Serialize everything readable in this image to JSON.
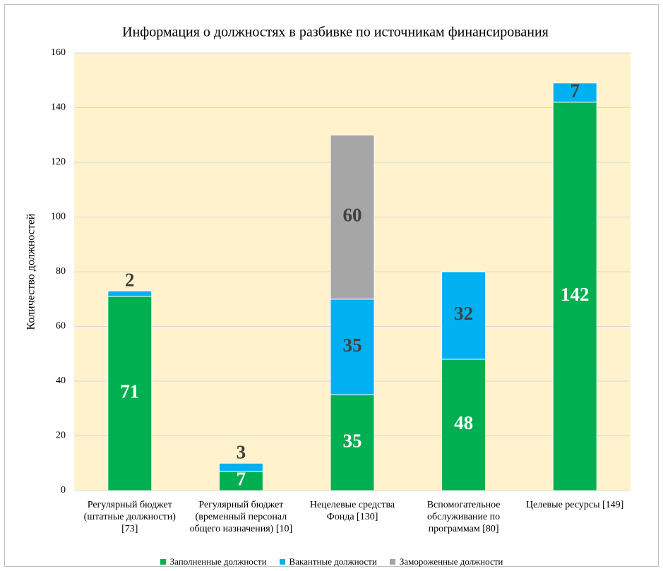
{
  "chart_data": {
    "type": "stacked_bar",
    "title": "Информация о должностях в разбивке по источникам финансирования",
    "y_label": "Количество должностей",
    "categories": [
      "Регулярный бюджет (штатные должности) [73]",
      "Регулярный бюджет (временный персонал общего назначения) [10]",
      "Нецелевые средства Фонда [130]",
      "Вспомогательное обслуживание по программам [80]",
      "Целевые ресурсы [149]"
    ],
    "series": [
      {
        "name": "Заполненные должности",
        "color": "#00b050",
        "label_color": "#ffffff",
        "values": [
          71,
          7,
          35,
          48,
          142
        ]
      },
      {
        "name": "Вакантные должности",
        "color": "#00b0f0",
        "label_color": "#404040",
        "values": [
          2,
          3,
          35,
          32,
          7
        ]
      },
      {
        "name": "Замороженные должности",
        "color": "#a6a6a6",
        "label_color": "#404040",
        "values": [
          null,
          null,
          60,
          null,
          null
        ]
      }
    ],
    "ylim": [
      0,
      160
    ],
    "yticks": [
      0,
      20,
      40,
      60,
      80,
      100,
      120,
      140,
      160
    ],
    "grid": true,
    "plot_background": "#fff2cc",
    "legend": "bottom"
  }
}
